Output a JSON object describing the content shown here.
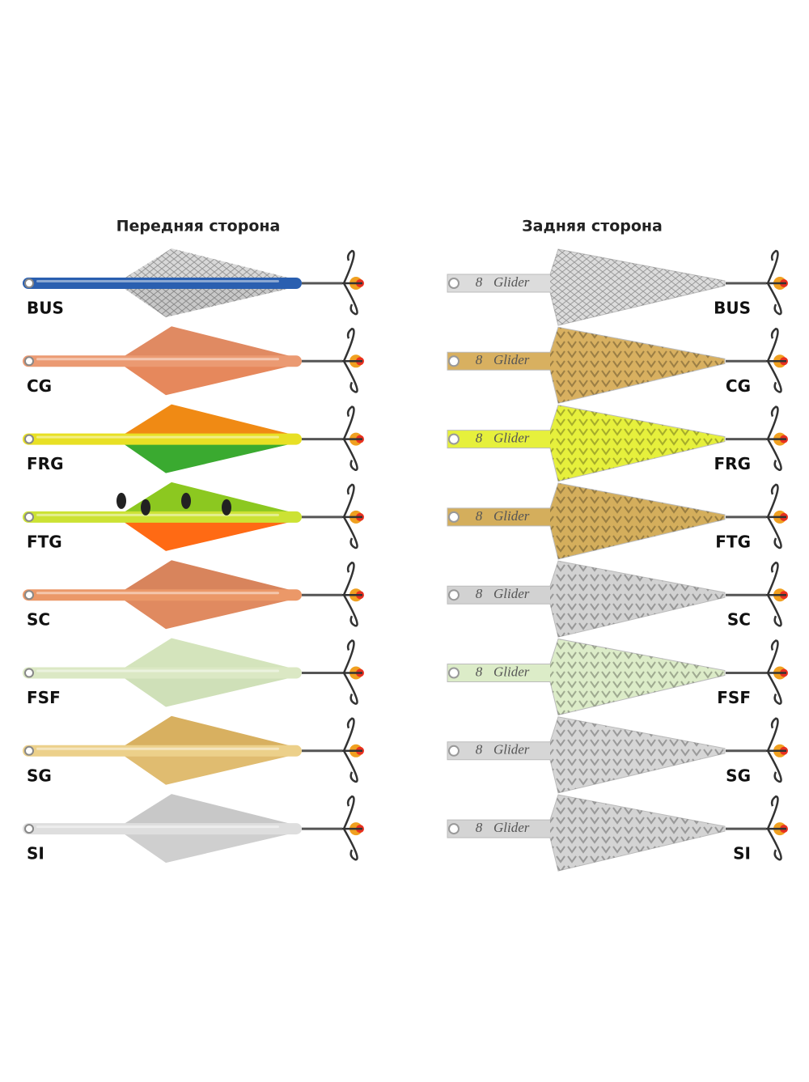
{
  "header": {
    "front": "Передняя сторона",
    "back": "Задняя сторона"
  },
  "engraving": {
    "mark": "8",
    "brand": "Glider"
  },
  "lures": [
    "BUS",
    "CG",
    "FRG",
    "FTG",
    "SC",
    "FSF",
    "SG",
    "SI"
  ]
}
